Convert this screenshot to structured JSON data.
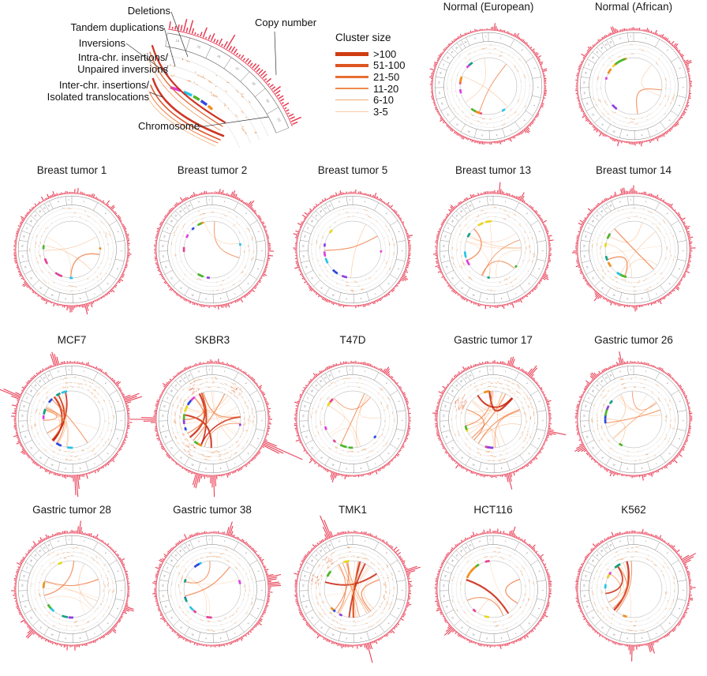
{
  "legend": {
    "callouts": {
      "deletions": "Deletions",
      "tandem_duplications": "Tandem duplications",
      "inversions": "Inversions",
      "intra_chr_line1": "Intra-chr. insertions/",
      "intra_chr_line2": "Unpaired inversions",
      "inter_chr_line1": "Inter-chr. insertions/",
      "inter_chr_line2": "Isolated translocations",
      "chromosome": "Chromosome",
      "copy_number": "Copy number"
    },
    "cluster_size": {
      "title": "Cluster size",
      "entries": [
        {
          "label": ">100",
          "width": 4.5,
          "color": "#d13b12"
        },
        {
          "label": "51-100",
          "width": 3.5,
          "color": "#dd5620"
        },
        {
          "label": "21-50",
          "width": 2.7,
          "color": "#e76f32"
        },
        {
          "label": "11-20",
          "width": 1.9,
          "color": "#ef8b4e"
        },
        {
          "label": "6-10",
          "width": 1.2,
          "color": "#f4a873"
        },
        {
          "label": "3-5",
          "width": 0.7,
          "color": "#f9c9a4"
        }
      ]
    }
  },
  "colors": {
    "copy_number": "#e8304a",
    "rearrangement_mark": "#ef8a3a",
    "chord_thin": "#f59a52",
    "chord_medium": "#ee6a28",
    "chord_thick": "#c8200c",
    "ring_faint": "#cccccc",
    "chromosome_ring": "#707070",
    "chromosome_palette": [
      "#e040e0",
      "#27c4e8",
      "#4db82a",
      "#2f48e0",
      "#8f3fe0",
      "#e8d820",
      "#f09020",
      "#e84393",
      "#16a085"
    ]
  },
  "chromosomes": [
    "1",
    "2",
    "3",
    "4",
    "5",
    "6",
    "7",
    "8",
    "9",
    "10",
    "11",
    "12",
    "13",
    "14",
    "15",
    "16",
    "17",
    "18",
    "19",
    "20",
    "21",
    "22",
    "X",
    "Y"
  ],
  "chart_data": {
    "type": "circos_grid",
    "panel_type": "circos",
    "tracks_outer_to_inner": [
      "copy number (red outer histogram)",
      "chromosome ring (1-22, X, Y)",
      "SV cluster marks: deletions / tandem duplications / inversions (orange rings)",
      "chromosome segments (colored arcs)",
      "rearrangement chords: intra-chr. insertions, unpaired inversions, inter-chr. insertions, isolated translocations (center links, width = cluster size)"
    ],
    "plots": [
      {
        "label": "Normal (European)",
        "chords": 3,
        "thick_chords": 0,
        "cn_spikes": 2,
        "cn_spike_scale": 0.6,
        "sv_mark_density": 1.0,
        "chord_orientation": "mixed"
      },
      {
        "label": "Normal (African)",
        "chords": 2,
        "thick_chords": 0,
        "cn_spikes": 2,
        "cn_spike_scale": 0.6,
        "sv_mark_density": 1.0,
        "chord_orientation": "mixed"
      },
      {
        "label": "Breast tumor 1",
        "chords": 4,
        "thick_chords": 0,
        "cn_spikes": 2,
        "cn_spike_scale": 0.7,
        "sv_mark_density": 1.0,
        "chord_orientation": "mixed"
      },
      {
        "label": "Breast tumor 2",
        "chords": 2,
        "thick_chords": 0,
        "cn_spikes": 2,
        "cn_spike_scale": 0.7,
        "sv_mark_density": 1.0,
        "chord_orientation": "mixed"
      },
      {
        "label": "Breast tumor 5",
        "chords": 2,
        "thick_chords": 0,
        "cn_spikes": 1,
        "cn_spike_scale": 0.7,
        "sv_mark_density": 1.0,
        "chord_orientation": "mixed"
      },
      {
        "label": "Breast tumor 13",
        "chords": 9,
        "thick_chords": 0,
        "cn_spikes": 3,
        "cn_spike_scale": 0.8,
        "sv_mark_density": 1.3,
        "chord_orientation": "mixed"
      },
      {
        "label": "Breast tumor 14",
        "chords": 8,
        "thick_chords": 0,
        "cn_spikes": 3,
        "cn_spike_scale": 0.8,
        "sv_mark_density": 1.3,
        "chord_orientation": "mixed"
      },
      {
        "label": "MCF7",
        "chords": 16,
        "thick_chords": 3,
        "cn_spikes": 4,
        "cn_spike_scale": 2.2,
        "sv_mark_density": 1.8,
        "chord_orientation": "left"
      },
      {
        "label": "SKBR3",
        "chords": 20,
        "thick_chords": 4,
        "cn_spikes": 5,
        "cn_spike_scale": 2.6,
        "sv_mark_density": 2.6,
        "chord_orientation": "mixed"
      },
      {
        "label": "T47D",
        "chords": 7,
        "thick_chords": 0,
        "cn_spikes": 2,
        "cn_spike_scale": 0.9,
        "sv_mark_density": 1.3,
        "chord_orientation": "mixed"
      },
      {
        "label": "Gastric tumor 17",
        "chords": 19,
        "thick_chords": 2,
        "cn_spikes": 4,
        "cn_spike_scale": 1.4,
        "sv_mark_density": 2.2,
        "chord_orientation": "mixed"
      },
      {
        "label": "Gastric tumor 26",
        "chords": 8,
        "thick_chords": 0,
        "cn_spikes": 3,
        "cn_spike_scale": 1.0,
        "sv_mark_density": 1.4,
        "chord_orientation": "mixed"
      },
      {
        "label": "Gastric tumor 28",
        "chords": 7,
        "thick_chords": 0,
        "cn_spikes": 3,
        "cn_spike_scale": 1.0,
        "sv_mark_density": 1.5,
        "chord_orientation": "mixed"
      },
      {
        "label": "Gastric tumor 38",
        "chords": 5,
        "thick_chords": 0,
        "cn_spikes": 3,
        "cn_spike_scale": 1.5,
        "sv_mark_density": 1.4,
        "chord_orientation": "mixed"
      },
      {
        "label": "TMK1",
        "chords": 22,
        "thick_chords": 3,
        "cn_spikes": 4,
        "cn_spike_scale": 1.6,
        "sv_mark_density": 2.2,
        "chord_orientation": "vertical"
      },
      {
        "label": "HCT116",
        "chords": 5,
        "thick_chords": 1,
        "cn_spikes": 2,
        "cn_spike_scale": 0.9,
        "sv_mark_density": 1.1,
        "chord_orientation": "mixed"
      },
      {
        "label": "K562",
        "chords": 9,
        "thick_chords": 2,
        "cn_spikes": 3,
        "cn_spike_scale": 1.5,
        "sv_mark_density": 1.3,
        "chord_orientation": "left"
      }
    ]
  }
}
